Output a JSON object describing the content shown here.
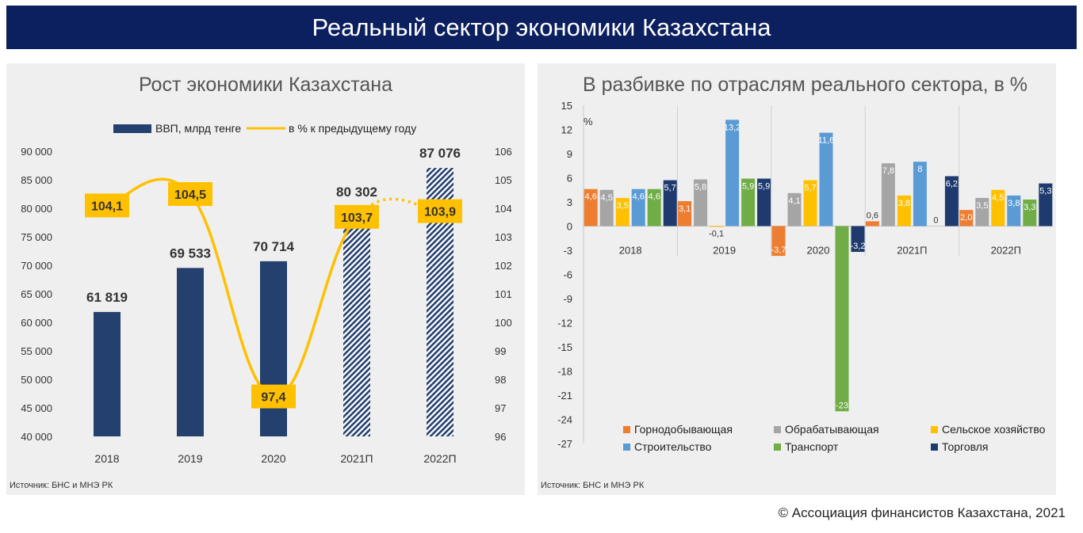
{
  "header": {
    "title": "Реальный сектор экономики Казахстана"
  },
  "footer": {
    "copyright": "© Ассоциация финансистов Казахстана, 2021"
  },
  "left": {
    "source": "Источник: БНС и МНЭ РК"
  },
  "right": {
    "source": "Источник: БНС и МНЭ РК"
  },
  "colors": {
    "header_bg": "#0c1f5e",
    "gdp_bar": "#24406e",
    "growth_line": "#ffc000",
    "label_box": "#ffc000",
    "mining": "#ed7d31",
    "manufacturing": "#a5a5a5",
    "agriculture": "#ffc000",
    "construction": "#5b9bd5",
    "transport": "#70ad47",
    "trade": "#1f3a6e"
  },
  "chart_data": [
    {
      "type": "bar",
      "title": "Рост экономики Казахстана",
      "categories": [
        "2018",
        "2019",
        "2020",
        "2021П",
        "2022П"
      ],
      "series": [
        {
          "name": "ВВП, млрд тенге",
          "type": "bar",
          "values": [
            61819,
            69533,
            70714,
            80302,
            87076
          ],
          "value_labels": [
            "61 819",
            "69 533",
            "70 714",
            "80 302",
            "87 076"
          ],
          "forecast_from_index": 3
        },
        {
          "name": "в % к предыдущему году",
          "type": "line",
          "axis": "secondary",
          "values": [
            104.1,
            104.5,
            97.4,
            103.7,
            103.9
          ],
          "value_labels": [
            "104,1",
            "104,5",
            "97,4",
            "103,7",
            "103,9"
          ],
          "dashed_from_index": 3
        }
      ],
      "y_ticks": [
        "40 000",
        "45 000",
        "50 000",
        "55 000",
        "60 000",
        "65 000",
        "70 000",
        "75 000",
        "80 000",
        "85 000",
        "90 000"
      ],
      "ylim": [
        40000,
        90000
      ],
      "y2_ticks": [
        "96",
        "97",
        "98",
        "99",
        "100",
        "101",
        "102",
        "103",
        "104",
        "105",
        "106"
      ],
      "y2lim": [
        96,
        106
      ],
      "legend": "top"
    },
    {
      "type": "bar",
      "title": "В разбивке по отраслям реального сектора, в %",
      "ylabel": "%",
      "categories": [
        "2018",
        "2019",
        "2020",
        "2021П",
        "2022П"
      ],
      "series": [
        {
          "name": "Горнодобывающая",
          "values": [
            4.6,
            3.1,
            -3.7,
            0.6,
            2.0
          ],
          "value_labels": [
            "4,6",
            "3,1",
            "-3,7",
            "0,6",
            "2,0"
          ]
        },
        {
          "name": "Обрабатывающая",
          "values": [
            4.5,
            5.8,
            4.1,
            7.8,
            3.5
          ],
          "value_labels": [
            "4,5",
            "5,8",
            "4,1",
            "7,8",
            "3,5"
          ]
        },
        {
          "name": "Сельское хозяйство",
          "values": [
            3.5,
            -0.1,
            5.7,
            3.8,
            4.5
          ],
          "value_labels": [
            "3,5",
            "-0,1",
            "5,7",
            "3,8",
            "4,5"
          ]
        },
        {
          "name": "Строительство",
          "values": [
            4.6,
            13.2,
            11.6,
            8,
            3.8
          ],
          "value_labels": [
            "4,6",
            "13,2",
            "11,6",
            "8",
            "3,8"
          ]
        },
        {
          "name": "Транспорт",
          "values": [
            4.6,
            5.9,
            -23,
            0,
            3.3
          ],
          "value_labels": [
            "4,6",
            "5,9",
            "-23",
            "0",
            "3,3"
          ]
        },
        {
          "name": "Торговля",
          "values": [
            5.7,
            5.9,
            -3.2,
            6.2,
            5.3
          ],
          "value_labels": [
            "5,7",
            "5,9",
            "-3,2",
            "6,2",
            "5,3"
          ]
        }
      ],
      "y_ticks": [
        "15",
        "12",
        "9",
        "6",
        "3",
        "0",
        "-3",
        "-6",
        "-9",
        "-12",
        "-15",
        "-18",
        "-21",
        "-24",
        "-27"
      ],
      "ylim": [
        -27,
        15
      ],
      "legend": "bottom"
    }
  ]
}
